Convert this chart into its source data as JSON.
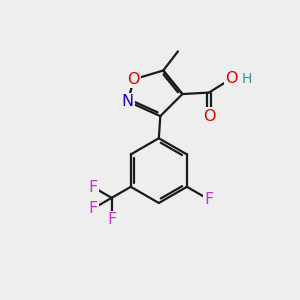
{
  "bg_color": "#eeeeee",
  "bond_color": "#1a1a1a",
  "bond_width": 1.6,
  "atom_colors": {
    "O": "#dd0000",
    "N": "#2200cc",
    "F": "#cc33cc",
    "C": "#1a1a1a",
    "H": "#339999"
  },
  "font_size_atom": 11.5,
  "font_size_H": 10.0
}
